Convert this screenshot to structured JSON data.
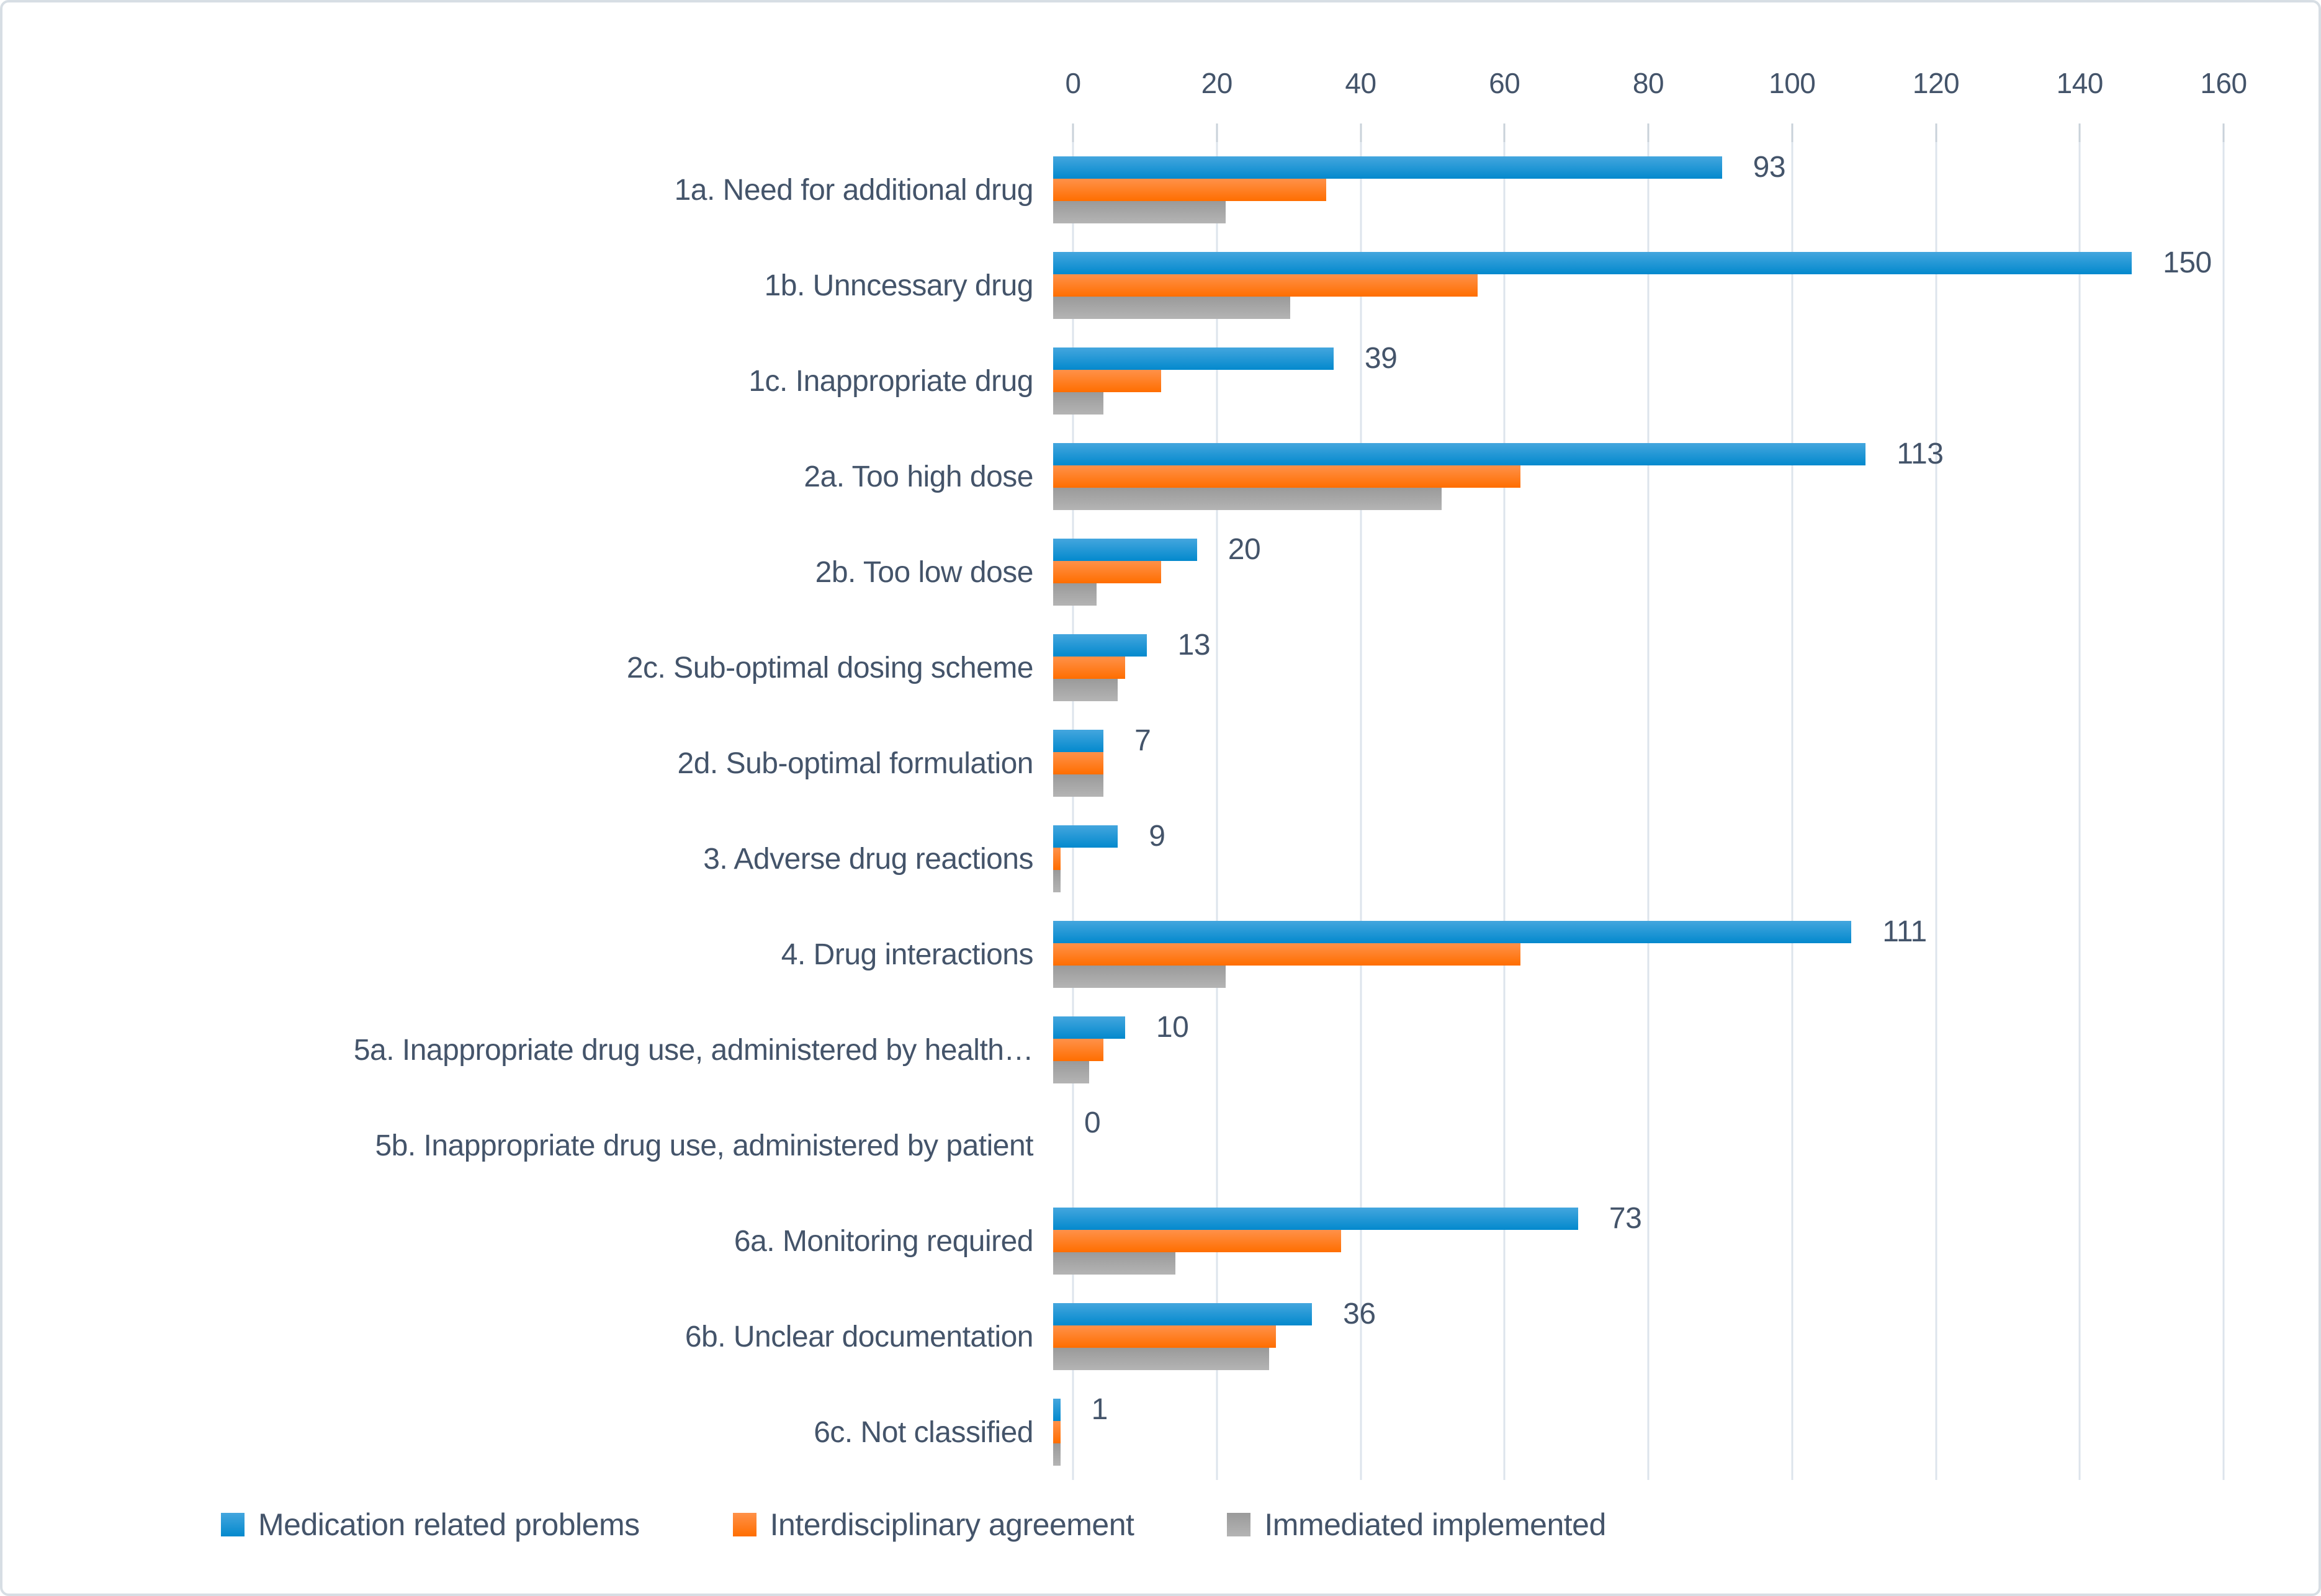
{
  "figure": {
    "background": "#ffffff",
    "border_color": "#d7dee4"
  },
  "colors": {
    "text": "#44546a",
    "gridline": "#dde4ec",
    "tick": "#c9d2da"
  },
  "chart_data": {
    "type": "bar",
    "orientation": "horizontal",
    "title": "",
    "xlabel": "",
    "ylabel": "",
    "xlim": [
      0,
      160
    ],
    "xticks": [
      0,
      20,
      40,
      60,
      80,
      100,
      120,
      140,
      160
    ],
    "axis_position": "top",
    "grid": true,
    "legend_position": "bottom",
    "categories": [
      "1a. Need for additional drug",
      "1b. Unncessary drug",
      "1c. Inappropriate drug",
      "2a. Too high dose",
      "2b. Too low dose",
      "2c. Sub-optimal dosing scheme",
      "2d. Sub-optimal formulation",
      "3. Adverse drug reactions",
      "4. Drug interactions",
      "5a. Inappropriate drug use, administered by health…",
      "5b. Inappropriate drug use, administered by patient",
      "6a. Monitoring required",
      "6b. Unclear documentation",
      "6c. Not classified"
    ],
    "series": [
      {
        "name": "Medication related problems",
        "color_top": "#44a6de",
        "color_bottom": "#0389cd",
        "show_data_labels": true,
        "values": [
          93,
          150,
          39,
          113,
          20,
          13,
          7,
          9,
          111,
          10,
          0,
          73,
          36,
          1
        ]
      },
      {
        "name": "Interdisciplinary agreement",
        "color_top": "#ff9149",
        "color_bottom": "#ff6e00",
        "show_data_labels": false,
        "values": [
          38,
          59,
          15,
          65,
          15,
          10,
          7,
          1,
          65,
          7,
          0,
          40,
          31,
          1
        ]
      },
      {
        "name": "Immediated implemented",
        "color_top": "#9a9a9a",
        "color_bottom": "#b4b4b4",
        "show_data_labels": false,
        "values": [
          24,
          33,
          7,
          54,
          6,
          9,
          7,
          1,
          24,
          5,
          0,
          17,
          30,
          1
        ]
      }
    ],
    "data_labels": [
      93,
      150,
      39,
      113,
      20,
      13,
      7,
      9,
      111,
      10,
      0,
      73,
      36,
      1
    ]
  },
  "legend": {
    "items": [
      {
        "label": "Medication related problems"
      },
      {
        "label": "Interdisciplinary agreement"
      },
      {
        "label": "Immediated implemented"
      }
    ]
  }
}
